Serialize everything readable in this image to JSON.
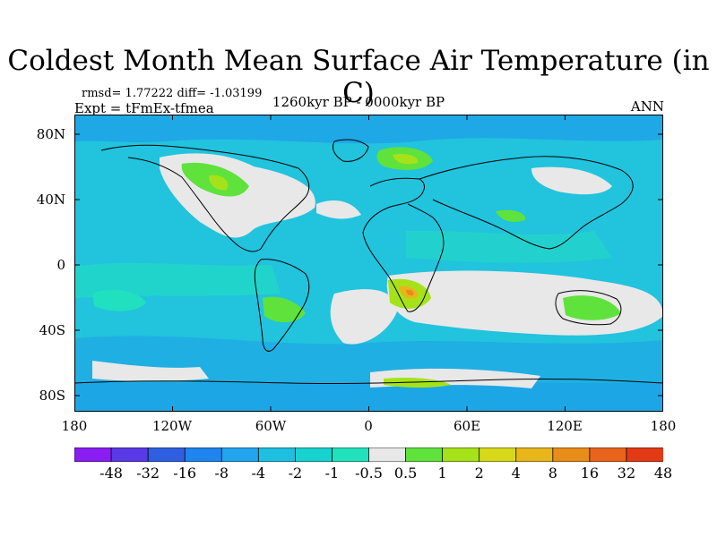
{
  "title": "Coldest Month Mean Surface Air Temperature (in C)",
  "stats": "rmsd= 1.77222  diff= -1.03199",
  "experiment": "Expt = tFmEx-tfmea",
  "period": "1260kyr BP - 0000kyr BP",
  "season": "ANN",
  "axes": {
    "y_ticks": [
      "80N",
      "40N",
      "0",
      "40S",
      "80S"
    ],
    "x_ticks": [
      "180",
      "120W",
      "60W",
      "0",
      "60E",
      "120E",
      "180"
    ]
  },
  "colorbar": {
    "labels": [
      "-48",
      "-32",
      "-16",
      "-8",
      "-4",
      "-2",
      "-1",
      "-0.5",
      "0.5",
      "1",
      "2",
      "4",
      "8",
      "16",
      "32",
      "48"
    ],
    "colors": [
      "#8a1ef2",
      "#5a3ae6",
      "#2f5fe0",
      "#1e84ee",
      "#23a4ee",
      "#1ebfe0",
      "#18d2cf",
      "#21e2bd",
      "#e8e8e8",
      "#5fe23c",
      "#a6e21a",
      "#d8d81a",
      "#e8b61a",
      "#e88c1a",
      "#e8641a",
      "#e23a14"
    ]
  },
  "map_colors": {
    "ocean": "#22c3dd",
    "ocean_dark": "#1d9fe8",
    "ocean_light": "#21e0c0",
    "neutral": "#e8e8e8",
    "warm1": "#5fe23c",
    "warm2": "#a6e21a",
    "warm3": "#e8b61a",
    "warm4": "#e88c1a"
  }
}
